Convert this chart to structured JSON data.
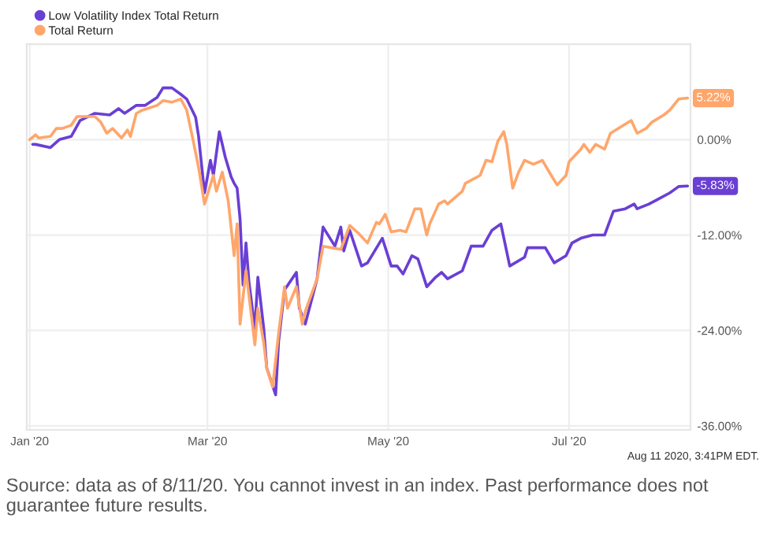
{
  "chart_data": {
    "type": "line",
    "legend": "top left",
    "grid": true,
    "marker": "none",
    "line_style": "solid",
    "xlim": [
      "2019-12-31",
      "2020-08-11"
    ],
    "xticks": [
      {
        "value": "2020-01-01",
        "label": "Jan '20"
      },
      {
        "value": "2020-03-01",
        "label": "Mar '20"
      },
      {
        "value": "2020-05-01",
        "label": "May '20"
      },
      {
        "value": "2020-07-01",
        "label": "Jul '20"
      }
    ],
    "ylim": [
      -36.5,
      12
    ],
    "yticks": [
      {
        "value": 0,
        "label": "0.00%"
      },
      {
        "value": -12,
        "label": "-12.00%"
      },
      {
        "value": -24,
        "label": "-24.00%"
      },
      {
        "value": -36,
        "label": "-36.00%"
      }
    ],
    "series": [
      {
        "name": "Low Volatility Index Total Return",
        "color": "#6a3fd4",
        "x": [
          "2020-01-02",
          "2020-01-03",
          "2020-01-08",
          "2020-01-11",
          "2020-01-15",
          "2020-01-18",
          "2020-01-23",
          "2020-01-28",
          "2020-01-31",
          "2020-02-02",
          "2020-02-06",
          "2020-02-09",
          "2020-02-13",
          "2020-02-15",
          "2020-02-18",
          "2020-02-21",
          "2020-02-23",
          "2020-02-26",
          "2020-02-27",
          "2020-02-29",
          "2020-03-02",
          "2020-03-03",
          "2020-03-05",
          "2020-03-07",
          "2020-03-09",
          "2020-03-10",
          "2020-03-11",
          "2020-03-12",
          "2020-03-13",
          "2020-03-14",
          "2020-03-15",
          "2020-03-17",
          "2020-03-18",
          "2020-03-20",
          "2020-03-21",
          "2020-03-24",
          "2020-03-25",
          "2020-03-27",
          "2020-03-31",
          "2020-04-01",
          "2020-04-03",
          "2020-04-07",
          "2020-04-09",
          "2020-04-13",
          "2020-04-15",
          "2020-04-16",
          "2020-04-18",
          "2020-04-22",
          "2020-04-24",
          "2020-04-29",
          "2020-05-02",
          "2020-05-04",
          "2020-05-06",
          "2020-05-09",
          "2020-05-11",
          "2020-05-14",
          "2020-05-17",
          "2020-05-19",
          "2020-05-21",
          "2020-05-26",
          "2020-05-29",
          "2020-06-02",
          "2020-06-05",
          "2020-06-08",
          "2020-06-11",
          "2020-06-16",
          "2020-06-17",
          "2020-06-23",
          "2020-06-26",
          "2020-06-30",
          "2020-07-02",
          "2020-07-05",
          "2020-07-09",
          "2020-07-13",
          "2020-07-16",
          "2020-07-20",
          "2020-07-23",
          "2020-07-24",
          "2020-07-28",
          "2020-07-31",
          "2020-08-04",
          "2020-08-07",
          "2020-08-10"
        ],
        "values": [
          -0.6,
          -0.6,
          -1,
          0,
          0.4,
          2.4,
          3.3,
          3.1,
          3.9,
          3.3,
          4.3,
          4.3,
          5.3,
          6.5,
          6.5,
          5.7,
          5.1,
          2.8,
          0.4,
          -6.7,
          -2.6,
          -4.5,
          1.0,
          -2.2,
          -4.7,
          -5.5,
          -6.1,
          -10,
          -18.3,
          -13,
          -17.9,
          -23.8,
          -17.3,
          -23.8,
          -28.7,
          -32.1,
          -25.4,
          -18.9,
          -16.7,
          -21.2,
          -23.2,
          -17.5,
          -11,
          -13.4,
          -11,
          -14,
          -11.4,
          -15.9,
          -15.5,
          -12.4,
          -15.9,
          -15.9,
          -16.9,
          -14.6,
          -15,
          -18.5,
          -17.3,
          -16.7,
          -17.5,
          -16.5,
          -13.4,
          -13.4,
          -11.4,
          -10.6,
          -15.9,
          -14.8,
          -13.6,
          -13.6,
          -15.5,
          -14.6,
          -13,
          -12.4,
          -12,
          -12,
          -9,
          -8.7,
          -8.1,
          -8.7,
          -8.1,
          -7.5,
          -6.7,
          -5.9,
          -5.83
        ]
      },
      {
        "name": "Total Return",
        "color": "#ffa66b",
        "x": [
          "2020-01-01",
          "2020-01-03",
          "2020-01-04",
          "2020-01-08",
          "2020-01-10",
          "2020-01-12",
          "2020-01-15",
          "2020-01-17",
          "2020-01-20",
          "2020-01-23",
          "2020-01-25",
          "2020-01-27",
          "2020-01-29",
          "2020-02-01",
          "2020-02-03",
          "2020-02-04",
          "2020-02-06",
          "2020-02-08",
          "2020-02-13",
          "2020-02-15",
          "2020-02-18",
          "2020-02-21",
          "2020-02-23",
          "2020-02-25",
          "2020-02-27",
          "2020-02-29",
          "2020-03-03",
          "2020-03-04",
          "2020-03-06",
          "2020-03-08",
          "2020-03-10",
          "2020-03-11",
          "2020-03-12",
          "2020-03-14",
          "2020-03-17",
          "2020-03-18",
          "2020-03-20",
          "2020-03-21",
          "2020-03-23",
          "2020-03-25",
          "2020-03-27",
          "2020-03-28",
          "2020-03-31",
          "2020-04-02",
          "2020-04-03",
          "2020-04-07",
          "2020-04-09",
          "2020-04-15",
          "2020-04-18",
          "2020-04-21",
          "2020-04-24",
          "2020-04-27",
          "2020-04-28",
          "2020-04-30",
          "2020-05-02",
          "2020-05-05",
          "2020-05-07",
          "2020-05-10",
          "2020-05-12",
          "2020-05-14",
          "2020-05-15",
          "2020-05-18",
          "2020-05-20",
          "2020-05-21",
          "2020-05-26",
          "2020-05-27",
          "2020-06-01",
          "2020-06-03",
          "2020-06-05",
          "2020-06-07",
          "2020-06-09",
          "2020-06-10",
          "2020-06-12",
          "2020-06-14",
          "2020-06-16",
          "2020-06-19",
          "2020-06-22",
          "2020-06-25",
          "2020-06-27",
          "2020-06-30",
          "2020-07-01",
          "2020-07-05",
          "2020-07-06",
          "2020-07-08",
          "2020-07-10",
          "2020-07-13",
          "2020-07-15",
          "2020-07-22",
          "2020-07-24",
          "2020-07-27",
          "2020-07-29",
          "2020-08-02",
          "2020-08-04",
          "2020-08-07",
          "2020-08-10"
        ],
        "values": [
          0,
          0.6,
          0.2,
          0.4,
          1.4,
          1.4,
          1.8,
          2.9,
          2.9,
          2.9,
          2.2,
          0.8,
          1.4,
          0.2,
          1.2,
          0.4,
          3.3,
          3.7,
          4.3,
          4.9,
          4.7,
          5.1,
          3.7,
          0.2,
          -3.5,
          -8.1,
          -4.5,
          -6.5,
          -4.1,
          -7.7,
          -14.6,
          -10.6,
          -23.2,
          -16.5,
          -25.8,
          -21.2,
          -25.6,
          -28.7,
          -31.1,
          -24.4,
          -18.5,
          -21.2,
          -18.5,
          -23.2,
          -21.6,
          -17.5,
          -13.4,
          -13.8,
          -10.8,
          -11.8,
          -13,
          -10.4,
          -10.6,
          -9.4,
          -11.6,
          -11.4,
          -11.6,
          -8.7,
          -8.7,
          -12,
          -10.6,
          -8.1,
          -7.7,
          -8.1,
          -6.5,
          -5.5,
          -4.5,
          -2.6,
          -2.8,
          -0.2,
          1.0,
          -0.6,
          -6.1,
          -4.1,
          -2.6,
          -3.1,
          -2.6,
          -4.5,
          -5.7,
          -4.5,
          -2.8,
          -1.2,
          -0.6,
          -1.6,
          -0.6,
          -1.2,
          0.8,
          2.4,
          0.8,
          1.4,
          2.2,
          3.1,
          3.7,
          5.1,
          5.22
        ]
      }
    ],
    "annotations": [
      {
        "text": "-5.83%",
        "x": "2020-08-10",
        "y": -5.83
      },
      {
        "text": "5.22%",
        "x": "2020-08-10",
        "y": 5.22
      },
      "Aug 11 2020, 3:41PM EDT.",
      "Source: data as of 8/11/20. You cannot invest in an index. Past performance does not guarantee future results."
    ]
  }
}
